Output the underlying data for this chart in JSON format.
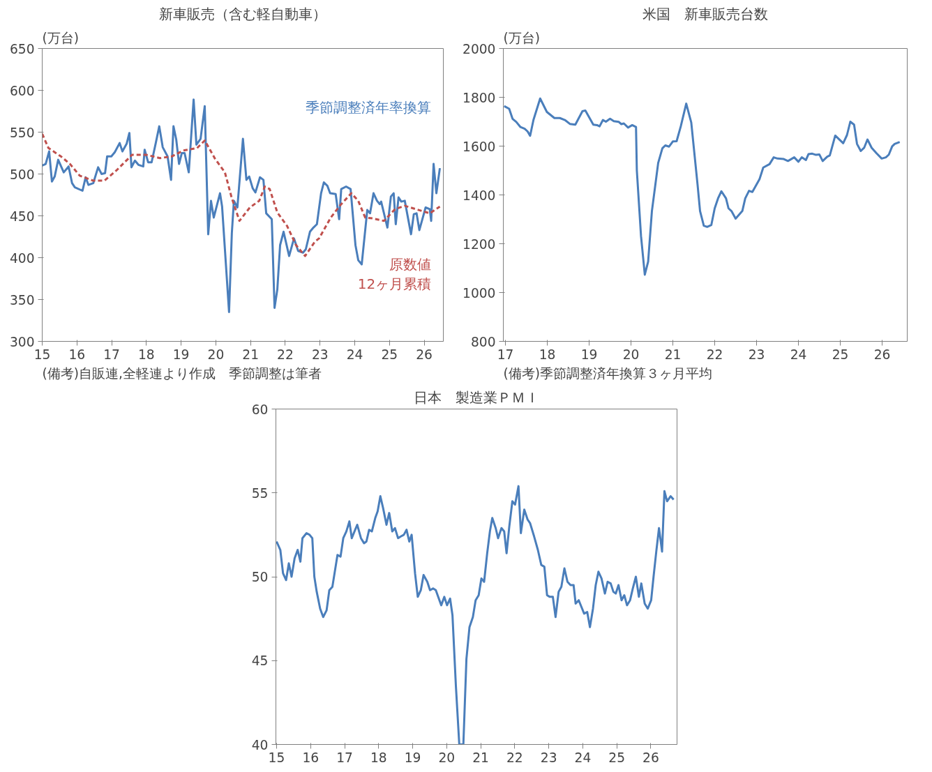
{
  "chart_data": [
    {
      "type": "line",
      "title": "新車販売（含む軽自動車）",
      "ylabel": "(万台)",
      "xlim": [
        15,
        26.55
      ],
      "xticks": [
        15,
        16,
        17,
        18,
        19,
        20,
        21,
        22,
        23,
        24,
        25,
        26
      ],
      "ylim": [
        300,
        650
      ],
      "yticks": [
        300,
        350,
        400,
        450,
        500,
        550,
        600,
        650
      ],
      "grid": false,
      "legend": false,
      "annotations": [
        "(備考)自販連,全軽連より作成　季節調整は筆者"
      ],
      "series": [
        {
          "name": "季節調整済年率換算",
          "color": "#4a7ebb",
          "line_style": "solid",
          "x": [
            15.0,
            15.1,
            15.2,
            15.28,
            15.36,
            15.46,
            15.62,
            15.76,
            15.86,
            15.94,
            16.16,
            16.25,
            16.33,
            16.47,
            16.61,
            16.71,
            16.81,
            16.87,
            16.99,
            17.09,
            17.23,
            17.31,
            17.43,
            17.51,
            17.57,
            17.67,
            17.77,
            17.91,
            17.95,
            18.05,
            18.15,
            18.27,
            18.37,
            18.47,
            18.61,
            18.71,
            18.78,
            18.86,
            18.94,
            19.02,
            19.1,
            19.22,
            19.36,
            19.44,
            19.56,
            19.68,
            19.78,
            19.86,
            19.94,
            20.12,
            20.18,
            20.38,
            20.46,
            20.52,
            20.62,
            20.78,
            20.88,
            20.96,
            21.06,
            21.14,
            21.27,
            21.37,
            21.45,
            21.61,
            21.69,
            21.77,
            21.85,
            21.95,
            22.11,
            22.25,
            22.37,
            22.51,
            22.59,
            22.71,
            22.81,
            22.91,
            23.03,
            23.11,
            23.21,
            23.29,
            23.45,
            23.55,
            23.61,
            23.75,
            23.88,
            24.02,
            24.1,
            24.2,
            24.36,
            24.44,
            24.54,
            24.64,
            24.72,
            24.76,
            24.94,
            25.04,
            25.12,
            25.18,
            25.26,
            25.34,
            25.44,
            25.62,
            25.7,
            25.78,
            25.86,
            26.04,
            26.16,
            26.2,
            26.27,
            26.35,
            26.45
          ],
          "values": [
            510,
            512,
            527,
            491,
            497,
            517,
            502,
            509,
            489,
            484,
            480,
            496,
            487,
            489,
            508,
            500,
            501,
            521,
            521,
            526,
            537,
            527,
            536,
            549,
            508,
            516,
            511,
            509,
            529,
            514,
            514,
            537,
            557,
            532,
            521,
            493,
            557,
            541,
            512,
            525,
            525,
            502,
            589,
            535,
            542,
            581,
            428,
            468,
            448,
            477,
            461,
            335,
            429,
            468,
            460,
            542,
            493,
            497,
            483,
            478,
            496,
            493,
            453,
            446,
            340,
            362,
            415,
            431,
            402,
            423,
            408,
            406,
            410,
            431,
            436,
            440,
            477,
            490,
            486,
            477,
            476,
            446,
            482,
            485,
            482,
            415,
            397,
            392,
            457,
            453,
            477,
            468,
            464,
            467,
            436,
            473,
            477,
            440,
            472,
            467,
            468,
            428,
            452,
            453,
            433,
            460,
            458,
            444,
            512,
            477,
            507
          ]
        },
        {
          "name": "原数値\n12ヶ月累積",
          "color": "#c0504d",
          "line_style": "dashed",
          "x": [
            15.0,
            15.18,
            15.54,
            15.8,
            16.08,
            16.47,
            16.79,
            17.13,
            17.59,
            17.99,
            18.39,
            18.73,
            19.06,
            19.46,
            19.68,
            19.98,
            20.26,
            20.46,
            20.68,
            20.98,
            21.25,
            21.41,
            21.55,
            21.77,
            22.05,
            22.31,
            22.57,
            22.85,
            22.97,
            23.31,
            23.57,
            23.9,
            24.1,
            24.3,
            24.5,
            24.84,
            25.16,
            25.44,
            25.84,
            26.16,
            26.45
          ],
          "values": [
            548,
            531,
            521,
            512,
            498,
            492,
            492,
            504,
            523,
            523,
            519,
            521,
            528,
            531,
            540,
            518,
            502,
            471,
            444,
            460,
            468,
            485,
            482,
            454,
            438,
            415,
            402,
            419,
            423,
            448,
            462,
            477,
            468,
            448,
            447,
            444,
            458,
            462,
            457,
            453,
            461
          ]
        }
      ]
    },
    {
      "type": "line",
      "title": "米国　新車販売台数",
      "ylabel": "(万台)",
      "xlim": [
        16.95,
        26.6
      ],
      "xticks": [
        17,
        18,
        19,
        20,
        21,
        22,
        23,
        24,
        25,
        26
      ],
      "ylim": [
        800,
        2000
      ],
      "yticks": [
        800,
        1000,
        1200,
        1400,
        1600,
        1800,
        2000
      ],
      "grid": false,
      "legend": false,
      "annotations": [
        "(備考)季節調整済年換算３ヶ月平均"
      ],
      "series": [
        {
          "color": "#4a7ebb",
          "line_style": "solid",
          "x": [
            16.97,
            17.09,
            17.17,
            17.26,
            17.36,
            17.46,
            17.53,
            17.59,
            17.67,
            17.83,
            17.99,
            18.17,
            18.3,
            18.42,
            18.54,
            18.67,
            18.84,
            18.91,
            19.1,
            19.19,
            19.25,
            19.33,
            19.4,
            19.5,
            19.59,
            19.71,
            19.77,
            19.83,
            19.93,
            20.03,
            20.12,
            20.14,
            20.24,
            20.33,
            20.41,
            20.5,
            20.65,
            20.75,
            20.82,
            20.91,
            21.0,
            21.09,
            21.19,
            21.32,
            21.44,
            21.59,
            21.65,
            21.74,
            21.82,
            21.92,
            22.0,
            22.08,
            22.16,
            22.27,
            22.33,
            22.4,
            22.5,
            22.66,
            22.73,
            22.82,
            22.9,
            23.07,
            23.16,
            23.31,
            23.41,
            23.5,
            23.65,
            23.75,
            23.9,
            24.0,
            24.08,
            24.18,
            24.24,
            24.33,
            24.42,
            24.5,
            24.58,
            24.69,
            24.75,
            24.88,
            25.07,
            25.16,
            25.24,
            25.33,
            25.4,
            25.49,
            25.57,
            25.65,
            25.75,
            25.87,
            25.99,
            26.09,
            26.16,
            26.24,
            26.3,
            26.42
          ],
          "values": [
            1764,
            1753,
            1712,
            1699,
            1678,
            1671,
            1660,
            1642,
            1707,
            1795,
            1740,
            1715,
            1715,
            1707,
            1691,
            1688,
            1743,
            1746,
            1688,
            1686,
            1681,
            1707,
            1700,
            1712,
            1702,
            1699,
            1690,
            1693,
            1676,
            1686,
            1678,
            1500,
            1231,
            1073,
            1127,
            1334,
            1531,
            1591,
            1603,
            1598,
            1619,
            1620,
            1681,
            1774,
            1697,
            1443,
            1334,
            1274,
            1269,
            1277,
            1345,
            1386,
            1415,
            1386,
            1345,
            1334,
            1303,
            1334,
            1386,
            1417,
            1412,
            1464,
            1512,
            1526,
            1554,
            1549,
            1547,
            1539,
            1554,
            1536,
            1554,
            1543,
            1567,
            1569,
            1564,
            1566,
            1539,
            1557,
            1562,
            1643,
            1612,
            1645,
            1700,
            1688,
            1609,
            1580,
            1593,
            1627,
            1593,
            1570,
            1549,
            1554,
            1565,
            1599,
            1609,
            1617
          ]
        }
      ]
    },
    {
      "type": "line",
      "title": "日本　製造業ＰＭＩ",
      "xlim": [
        14.98,
        26.77
      ],
      "xticks": [
        15,
        16,
        17,
        18,
        19,
        20,
        21,
        22,
        23,
        24,
        25,
        26
      ],
      "ylim": [
        40,
        60
      ],
      "yticks": [
        40,
        45,
        50,
        55,
        60
      ],
      "grid": false,
      "legend": false,
      "series": [
        {
          "color": "#4a7ebb",
          "line_style": "solid",
          "x": [
            15.0,
            15.11,
            15.19,
            15.28,
            15.36,
            15.44,
            15.53,
            15.62,
            15.7,
            15.76,
            15.88,
            15.97,
            16.05,
            16.11,
            16.18,
            16.28,
            16.37,
            16.47,
            16.55,
            16.64,
            16.79,
            16.88,
            16.96,
            17.05,
            17.14,
            17.21,
            17.37,
            17.48,
            17.57,
            17.64,
            17.72,
            17.8,
            17.9,
            17.97,
            18.05,
            18.13,
            18.23,
            18.31,
            18.4,
            18.48,
            18.57,
            18.65,
            18.74,
            18.82,
            18.9,
            18.97,
            19.07,
            19.15,
            19.24,
            19.32,
            19.43,
            19.51,
            19.6,
            19.68,
            19.75,
            19.84,
            19.93,
            20.01,
            20.1,
            20.17,
            20.27,
            20.37,
            20.49,
            20.58,
            20.67,
            20.77,
            20.85,
            20.94,
            21.02,
            21.1,
            21.19,
            21.27,
            21.34,
            21.44,
            21.51,
            21.61,
            21.69,
            21.76,
            21.84,
            21.93,
            22.01,
            22.11,
            22.18,
            22.28,
            22.38,
            22.45,
            22.57,
            22.68,
            22.78,
            22.87,
            22.95,
            23.03,
            23.12,
            23.2,
            23.29,
            23.37,
            23.46,
            23.55,
            23.64,
            23.73,
            23.79,
            23.88,
            23.96,
            24.04,
            24.13,
            24.21,
            24.3,
            24.38,
            24.46,
            24.55,
            24.65,
            24.73,
            24.82,
            24.9,
            24.97,
            25.05,
            25.14,
            25.22,
            25.3,
            25.39,
            25.47,
            25.56,
            25.65,
            25.72,
            25.82,
            25.91,
            26.01,
            26.08,
            26.16,
            26.24,
            26.33,
            26.4,
            26.48,
            26.58,
            26.67
          ],
          "values": [
            52.1,
            51.6,
            50.2,
            49.8,
            50.8,
            50.0,
            51.1,
            51.6,
            50.9,
            52.3,
            52.6,
            52.5,
            52.3,
            50.0,
            49.1,
            48.1,
            47.6,
            48.0,
            49.2,
            49.4,
            51.3,
            51.2,
            52.3,
            52.7,
            53.3,
            52.3,
            53.1,
            52.3,
            52.0,
            52.1,
            52.8,
            52.7,
            53.5,
            53.9,
            54.8,
            54.1,
            53.1,
            53.8,
            52.7,
            52.9,
            52.3,
            52.4,
            52.5,
            52.8,
            52.1,
            52.5,
            50.2,
            48.8,
            49.2,
            50.1,
            49.7,
            49.2,
            49.3,
            49.2,
            48.8,
            48.3,
            48.8,
            48.3,
            48.7,
            47.7,
            43.5,
            40,
            40,
            45.1,
            47.0,
            47.6,
            48.6,
            48.9,
            49.9,
            49.7,
            51.4,
            52.7,
            53.5,
            52.9,
            52.3,
            52.9,
            52.7,
            51.4,
            53.0,
            54.5,
            54.3,
            55.4,
            52.6,
            54.0,
            53.4,
            53.2,
            52.4,
            51.6,
            50.7,
            50.6,
            48.9,
            48.8,
            48.8,
            47.6,
            49.1,
            49.4,
            50.5,
            49.7,
            49.5,
            49.5,
            48.4,
            48.6,
            48.2,
            47.8,
            47.9,
            47.0,
            48.1,
            49.5,
            50.3,
            49.9,
            49.0,
            49.7,
            49.6,
            49.1,
            49.0,
            49.5,
            48.6,
            48.9,
            48.3,
            48.6,
            49.3,
            50.0,
            48.8,
            49.6,
            48.4,
            48.1,
            48.6,
            50.0,
            51.5,
            52.9,
            51.5,
            55.1,
            54.5,
            54.8,
            54.6
          ]
        }
      ]
    }
  ]
}
